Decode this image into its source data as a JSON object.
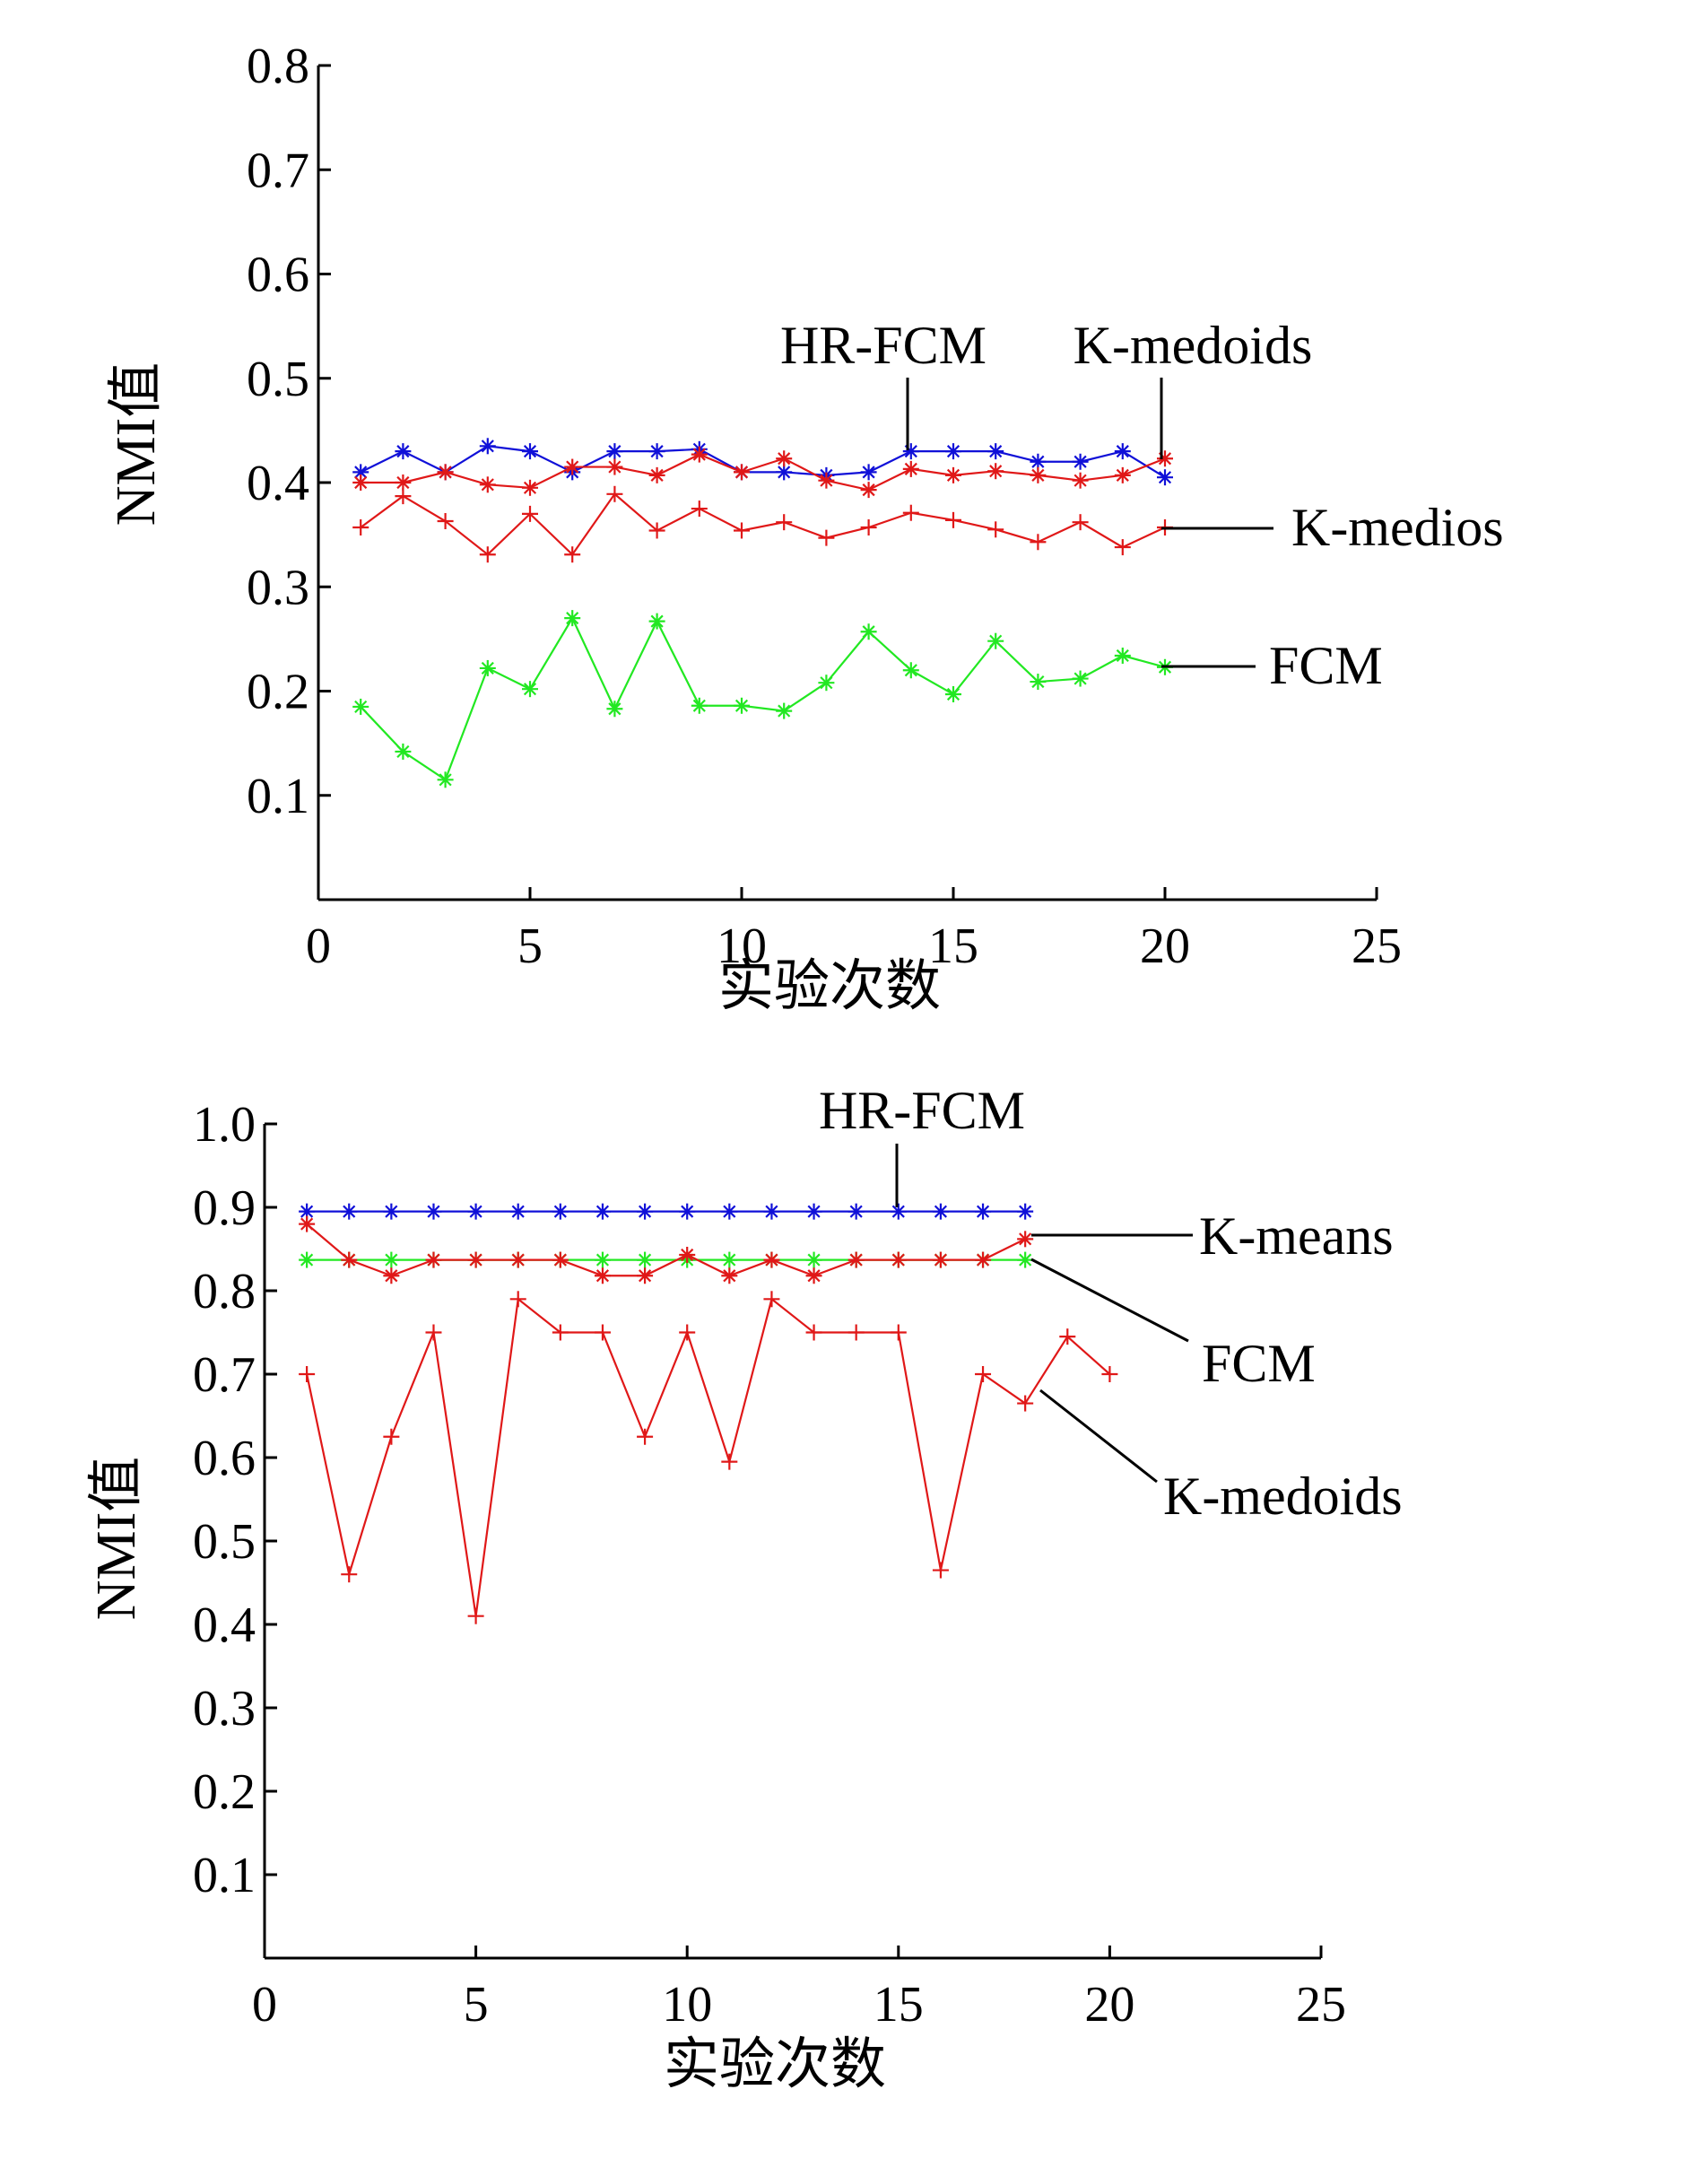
{
  "colors": {
    "blue": "#1010d8",
    "red": "#e01818",
    "green": "#22e822",
    "axis": "#000000"
  },
  "chart_data": [
    {
      "type": "line",
      "xlabel": "实验次数",
      "ylabel": "NMI值",
      "xlim": [
        0,
        25
      ],
      "ylim": [
        0,
        0.8
      ],
      "xticks": [
        0,
        5,
        10,
        15,
        20,
        25
      ],
      "xtick_labels": [
        "0",
        "5",
        "10",
        "15",
        "20",
        "25"
      ],
      "yticks": [
        0.1,
        0.2,
        0.3,
        0.4,
        0.5,
        0.6,
        0.7,
        0.8
      ],
      "ytick_labels": [
        "0.1",
        "0.2",
        "0.3",
        "0.4",
        "0.5",
        "0.6",
        "0.7",
        "0.8"
      ],
      "grid": false,
      "x": [
        1,
        2,
        3,
        4,
        5,
        6,
        7,
        8,
        9,
        10,
        11,
        12,
        13,
        14,
        15,
        16,
        17,
        18,
        19,
        20
      ],
      "series": [
        {
          "name": "HR-FCM",
          "color": "blue",
          "marker": "star",
          "values": [
            0.41,
            0.43,
            0.41,
            0.435,
            0.43,
            0.41,
            0.43,
            0.43,
            0.432,
            0.41,
            0.41,
            0.407,
            0.41,
            0.43,
            0.43,
            0.43,
            0.42,
            0.42,
            0.43,
            0.405
          ]
        },
        {
          "name": "K-medoids",
          "color": "red",
          "marker": "star",
          "values": [
            0.4,
            0.4,
            0.41,
            0.398,
            0.395,
            0.415,
            0.415,
            0.407,
            0.427,
            0.41,
            0.423,
            0.402,
            0.393,
            0.413,
            0.407,
            0.411,
            0.407,
            0.402,
            0.407,
            0.423
          ]
        },
        {
          "name": "K-medios",
          "color": "red",
          "marker": "plus",
          "values": [
            0.357,
            0.387,
            0.363,
            0.331,
            0.37,
            0.331,
            0.389,
            0.354,
            0.375,
            0.354,
            0.362,
            0.347,
            0.357,
            0.371,
            0.364,
            0.355,
            0.343,
            0.362,
            0.338,
            0.357
          ]
        },
        {
          "name": "FCM",
          "color": "green",
          "marker": "star",
          "values": [
            0.185,
            0.142,
            0.115,
            0.222,
            0.202,
            0.27,
            0.183,
            0.267,
            0.186,
            0.186,
            0.181,
            0.208,
            0.257,
            0.22,
            0.197,
            0.248,
            0.209,
            0.212,
            0.234,
            0.223
          ]
        }
      ],
      "callouts": [
        {
          "label": "HR-FCM",
          "series": "HR-FCM",
          "at_x": 14
        },
        {
          "label": "K-medoids",
          "series": "K-medoids",
          "at_x": 20
        },
        {
          "label": "K-medios",
          "series": "K-medios",
          "at_x": 20
        },
        {
          "label": "FCM",
          "series": "FCM",
          "at_x": 20
        }
      ]
    },
    {
      "type": "line",
      "xlabel": "实验次数",
      "ylabel": "NMI值",
      "xlim": [
        0,
        25
      ],
      "ylim": [
        0,
        1.0
      ],
      "xticks": [
        0,
        5,
        10,
        15,
        20,
        25
      ],
      "xtick_labels": [
        "0",
        "5",
        "10",
        "15",
        "20",
        "25"
      ],
      "yticks": [
        0.1,
        0.2,
        0.3,
        0.4,
        0.5,
        0.6,
        0.7,
        0.8,
        0.9,
        1.0
      ],
      "ytick_labels": [
        "0.1",
        "0.2",
        "0.3",
        "0.4",
        "0.5",
        "0.6",
        "0.7",
        "0.8",
        "0.9",
        "1.0"
      ],
      "grid": false,
      "series": [
        {
          "name": "HR-FCM",
          "color": "blue",
          "marker": "star",
          "x": [
            1,
            2,
            3,
            4,
            5,
            6,
            7,
            8,
            9,
            10,
            11,
            12,
            13,
            14,
            15,
            16,
            17,
            18
          ],
          "values": [
            0.895,
            0.895,
            0.895,
            0.895,
            0.895,
            0.895,
            0.895,
            0.895,
            0.895,
            0.895,
            0.895,
            0.895,
            0.895,
            0.895,
            0.895,
            0.895,
            0.895,
            0.895
          ]
        },
        {
          "name": "FCM",
          "color": "green",
          "marker": "star",
          "x": [
            1,
            2,
            3,
            4,
            5,
            6,
            7,
            8,
            9,
            10,
            11,
            12,
            13,
            14,
            15,
            16,
            17,
            18
          ],
          "values": [
            0.837,
            0.837,
            0.837,
            0.837,
            0.837,
            0.837,
            0.837,
            0.837,
            0.837,
            0.837,
            0.837,
            0.837,
            0.837,
            0.837,
            0.837,
            0.837,
            0.837,
            0.837
          ]
        },
        {
          "name": "K-means",
          "color": "red",
          "marker": "star",
          "x": [
            1,
            2,
            3,
            4,
            5,
            6,
            7,
            8,
            9,
            10,
            11,
            12,
            13,
            14,
            15,
            16,
            17,
            18
          ],
          "values": [
            0.88,
            0.837,
            0.818,
            0.837,
            0.837,
            0.837,
            0.837,
            0.818,
            0.818,
            0.843,
            0.818,
            0.837,
            0.818,
            0.837,
            0.837,
            0.837,
            0.837,
            0.862
          ]
        },
        {
          "name": "K-medoids",
          "color": "red",
          "marker": "plus",
          "x": [
            1,
            2,
            3,
            4,
            5,
            6,
            7,
            8,
            9,
            10,
            11,
            12,
            13,
            14,
            15,
            16,
            17,
            18,
            19,
            20
          ],
          "values": [
            0.7,
            0.46,
            0.625,
            0.75,
            0.41,
            0.79,
            0.75,
            0.75,
            0.625,
            0.75,
            0.595,
            0.79,
            0.75,
            0.75,
            0.75,
            0.465,
            0.7,
            0.665,
            0.745,
            0.7
          ],
          "break_after_x": 18
        }
      ],
      "callouts": [
        {
          "label": "HR-FCM",
          "series": "HR-FCM",
          "at_x": 15
        },
        {
          "label": "K-means",
          "series": "K-means",
          "at_x": 18
        },
        {
          "label": "FCM",
          "series": "FCM",
          "at_x": 18
        },
        {
          "label": "K-medoids",
          "series": "K-medoids",
          "at_x": 18
        }
      ]
    }
  ]
}
